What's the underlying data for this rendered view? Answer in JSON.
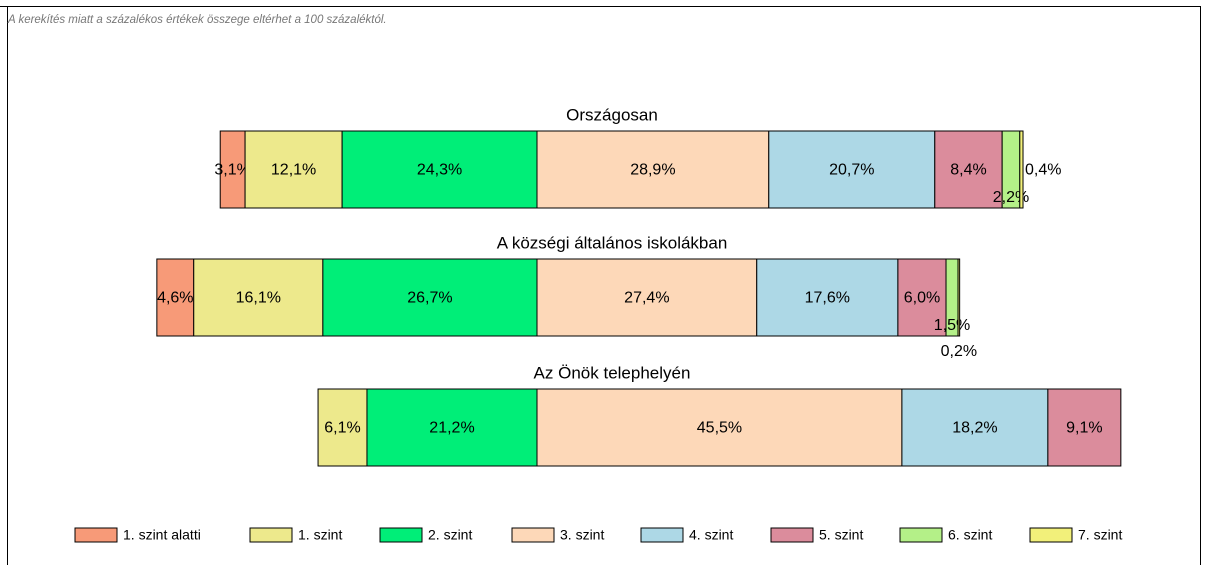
{
  "chart_data": {
    "type": "diverging-bar",
    "note": "A kerekítés miatt a  százalékos értékek összege eltérhet a 100 százaléktól.",
    "categories": [
      "Országosan",
      "A községi általános iskolákban",
      "Az Önök telephelyén"
    ],
    "series": [
      {
        "name": "1. szint alatti",
        "color": "#f79a78",
        "values": [
          3.1,
          4.6,
          null
        ],
        "value_labels": [
          "3,1%",
          "4,6%",
          null
        ]
      },
      {
        "name": "1. szint",
        "color": "#ede98c",
        "values": [
          12.1,
          16.1,
          6.1
        ],
        "value_labels": [
          "12,1%",
          "16,1%",
          "6,1%"
        ]
      },
      {
        "name": "2. szint",
        "color": "#00ee78",
        "values": [
          24.3,
          26.7,
          21.2
        ],
        "value_labels": [
          "24,3%",
          "26,7%",
          "21,2%"
        ]
      },
      {
        "name": "3. szint",
        "color": "#fdd8b8",
        "values": [
          28.9,
          27.4,
          45.5
        ],
        "value_labels": [
          "28,9%",
          "27,4%",
          "45,5%"
        ]
      },
      {
        "name": "4. szint",
        "color": "#add8e6",
        "values": [
          20.7,
          17.6,
          18.2
        ],
        "value_labels": [
          "20,7%",
          "17,6%",
          "18,2%"
        ]
      },
      {
        "name": "5. szint",
        "color": "#db8c9c",
        "values": [
          8.4,
          6.0,
          9.1
        ],
        "value_labels": [
          "8,4%",
          "6,0%",
          "9,1%"
        ]
      },
      {
        "name": "6. szint",
        "color": "#b4f088",
        "values": [
          2.2,
          1.5,
          null
        ],
        "value_labels": [
          "2,2%",
          "1,5%",
          null
        ]
      },
      {
        "name": "7. szint",
        "color": "#f2f07a",
        "values": [
          0.4,
          0.2,
          null
        ],
        "value_labels": [
          "0,4%",
          "0,2%",
          null
        ]
      }
    ]
  }
}
